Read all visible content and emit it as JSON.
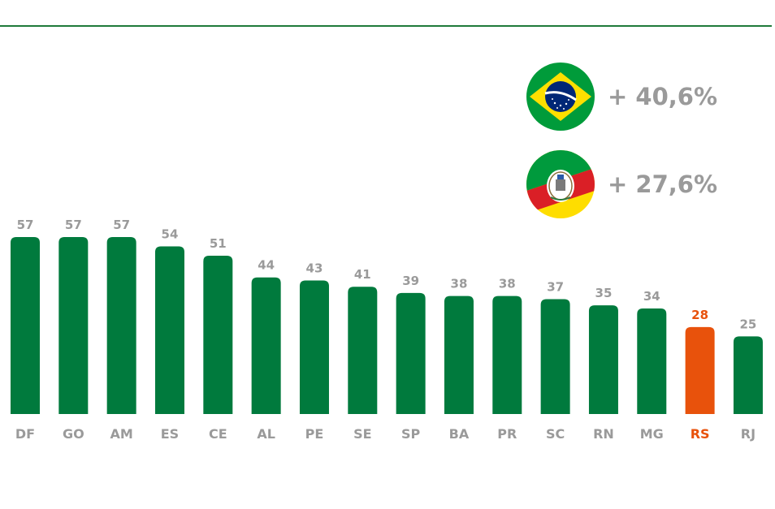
{
  "colors": {
    "bar": "#007a3d",
    "highlight_bar": "#e8520c",
    "label_gray": "#9a9a9a",
    "rule": "#1f7a3a"
  },
  "legend": [
    {
      "icon": "brazil-flag-icon",
      "text": "+ 40,6%"
    },
    {
      "icon": "rio-grande-do-sul-flag-icon",
      "text": "+ 27,6%"
    }
  ],
  "chart_data": {
    "type": "bar",
    "categories": [
      "DF",
      "GO",
      "AM",
      "ES",
      "CE",
      "AL",
      "PE",
      "SE",
      "SP",
      "BA",
      "PR",
      "SC",
      "RN",
      "MG",
      "RS",
      "RJ"
    ],
    "values": [
      57,
      57,
      57,
      54,
      51,
      44,
      43,
      41,
      39,
      38,
      38,
      37,
      35,
      34,
      28,
      25
    ],
    "highlight": "RS",
    "title": "",
    "xlabel": "",
    "ylabel": "",
    "ylim": [
      0,
      57
    ],
    "grid": false,
    "data_labels": true
  }
}
